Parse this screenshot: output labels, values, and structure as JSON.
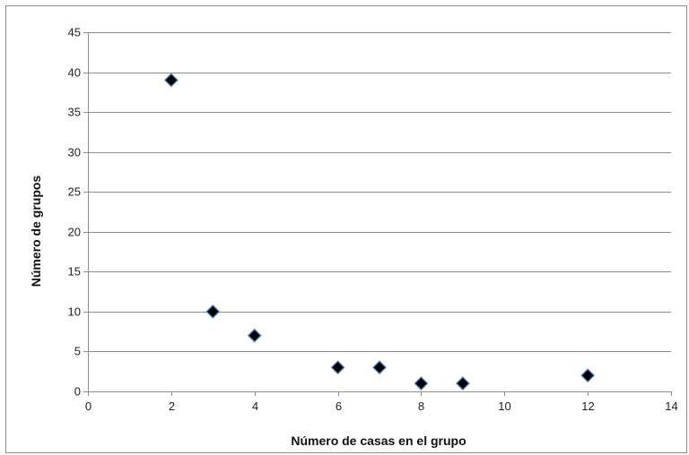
{
  "chart_data": {
    "type": "scatter",
    "title": "",
    "xlabel": "Número de casas en el grupo",
    "ylabel": "Número de grupos",
    "xlim": [
      0,
      14
    ],
    "ylim": [
      0,
      45
    ],
    "x_ticks": [
      0,
      2,
      4,
      6,
      8,
      10,
      12,
      14
    ],
    "y_ticks": [
      0,
      5,
      10,
      15,
      20,
      25,
      30,
      35,
      40,
      45
    ],
    "grid": "horizontal",
    "legend": "none",
    "marker": "diamond",
    "colors": {
      "marker_fill": "#000000",
      "marker_edge": "#4f81bd",
      "gridline": "#8c8c8c"
    },
    "series": [
      {
        "points": [
          {
            "x": 2,
            "y": 39
          },
          {
            "x": 3,
            "y": 10
          },
          {
            "x": 4,
            "y": 7
          },
          {
            "x": 6,
            "y": 3
          },
          {
            "x": 7,
            "y": 3
          },
          {
            "x": 8,
            "y": 1
          },
          {
            "x": 9,
            "y": 1
          },
          {
            "x": 12,
            "y": 2
          }
        ]
      }
    ]
  }
}
